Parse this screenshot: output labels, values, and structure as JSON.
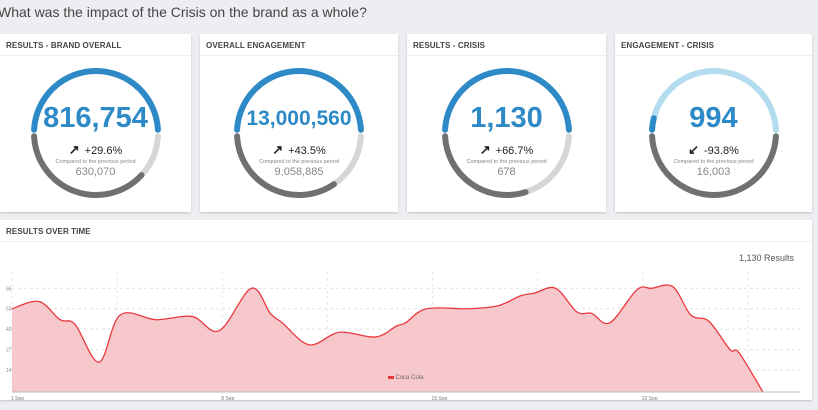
{
  "page_title": "What was the impact of the Crisis on the brand as a whole?",
  "colors": {
    "blue": "#2e8ac6",
    "light_blue": "#b3dcee",
    "dark_gray": "#707070",
    "light_gray": "#d6d6d6",
    "series": "#e8393f",
    "fill": "#f6c8cb"
  },
  "cards": [
    {
      "title": "RESULTS - BRAND OVERALL",
      "value": "816,754",
      "change": "+29.6%",
      "trend": "up",
      "compare_label": "Compared to the previous period",
      "previous": "630,070",
      "current_num": 816754,
      "previous_num": 630070
    },
    {
      "title": "OVERALL ENGAGEMENT",
      "value": "13,000,560",
      "change": "+43.5%",
      "trend": "up",
      "compare_label": "Compared to the previous period",
      "previous": "9,058,885",
      "current_num": 13000560,
      "previous_num": 9058885
    },
    {
      "title": "RESULTS - CRISIS",
      "value": "1,130",
      "change": "+66.7%",
      "trend": "up",
      "compare_label": "Compared to the previous period",
      "previous": "678",
      "current_num": 1130,
      "previous_num": 678
    },
    {
      "title": "ENGAGEMENT - CRISIS",
      "value": "994",
      "change": "-93.8%",
      "trend": "down",
      "compare_label": "Compared to the previous period",
      "previous": "16,003",
      "current_num": 994,
      "previous_num": 16003
    }
  ],
  "chart_section": {
    "title": "RESULTS OVER TIME",
    "results_count": "1,130 Results"
  },
  "chart_data": {
    "type": "area",
    "title": "RESULTS OVER TIME",
    "xlabel": "",
    "ylabel": "",
    "x_ticks": [
      {
        "day": 1,
        "label": "1 Sep"
      },
      {
        "day": 8,
        "label": "8 Sep"
      },
      {
        "day": 15,
        "label": "15 Sep"
      },
      {
        "day": 22,
        "label": "22 Sep"
      }
    ],
    "y_ticks": [
      14,
      27,
      40,
      53,
      66
    ],
    "ylim": [
      0,
      70
    ],
    "xlim": [
      1,
      27
    ],
    "grid": true,
    "legend": "bottom-center",
    "series": [
      {
        "name": "Coca Cola",
        "points": [
          [
            1,
            53
          ],
          [
            1.9,
            57.6
          ],
          [
            2.6,
            46
          ],
          [
            3.1,
            43
          ],
          [
            3.9,
            19
          ],
          [
            4.6,
            49
          ],
          [
            5.8,
            46
          ],
          [
            7,
            48
          ],
          [
            7.9,
            39
          ],
          [
            8.97,
            66
          ],
          [
            9.6,
            50
          ],
          [
            10,
            44
          ],
          [
            10.9,
            30
          ],
          [
            11.9,
            38
          ],
          [
            13.1,
            35
          ],
          [
            13.8,
            42
          ],
          [
            14.1,
            44
          ],
          [
            14.8,
            53
          ],
          [
            16.2,
            53
          ],
          [
            17.2,
            55
          ],
          [
            17.9,
            61
          ],
          [
            18.4,
            63
          ],
          [
            19.1,
            66
          ],
          [
            19.8,
            51
          ],
          [
            20.3,
            50
          ],
          [
            20.9,
            44
          ],
          [
            21.8,
            65
          ],
          [
            22.3,
            66
          ],
          [
            23,
            67
          ],
          [
            23.6,
            49
          ],
          [
            24.2,
            45
          ],
          [
            24.9,
            27
          ],
          [
            25.2,
            25
          ],
          [
            26,
            0
          ]
        ]
      }
    ]
  }
}
